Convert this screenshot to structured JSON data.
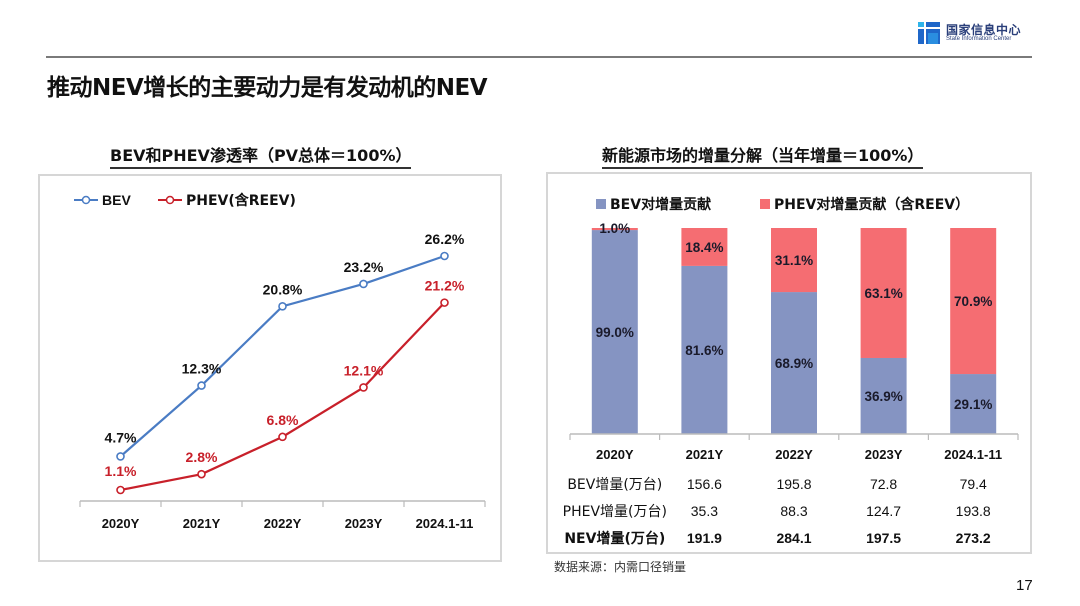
{
  "header": {
    "logo": {
      "name_cn": "国家信息中心",
      "name_en": "State Information Center"
    },
    "title": "推动NEV增长的主要动力是有发动机的NEV"
  },
  "footer": {
    "source": "数据来源：内需口径销量",
    "page_number": "17"
  },
  "colors": {
    "bev_line": "#4a7cc4",
    "phev_line": "#c8202a",
    "bev_bar": "#8594c2",
    "phev_bar": "#f56d72",
    "phev_label": "#c8202a",
    "frame": "#d6d6d6"
  },
  "chart_data": [
    {
      "type": "line",
      "title": "BEV和PHEV渗透率（PV总体＝100%）",
      "xlabel": "",
      "ylabel": "",
      "categories": [
        "2020Y",
        "2021Y",
        "2022Y",
        "2023Y",
        "2024.1-11"
      ],
      "ylim": [
        0,
        30
      ],
      "grid": false,
      "legend": "top-left",
      "series": [
        {
          "name": "BEV",
          "values": [
            4.7,
            12.3,
            20.8,
            23.2,
            26.2
          ],
          "labels": [
            "4.7%",
            "12.3%",
            "20.8%",
            "23.2%",
            "26.2%"
          ]
        },
        {
          "name": "PHEV(含REEV)",
          "values": [
            1.1,
            2.8,
            6.8,
            12.1,
            21.2
          ],
          "labels": [
            "1.1%",
            "2.8%",
            "6.8%",
            "12.1%",
            "21.2%"
          ]
        }
      ]
    },
    {
      "type": "bar",
      "stacked": true,
      "title": "新能源市场的增量分解（当年增量＝100%）",
      "xlabel": "",
      "ylabel": "",
      "categories": [
        "2020Y",
        "2021Y",
        "2022Y",
        "2023Y",
        "2024.1-11"
      ],
      "ylim": [
        0,
        100
      ],
      "legend": "top",
      "series": [
        {
          "name": "BEV对增量贡献",
          "values": [
            99.0,
            81.6,
            68.9,
            36.9,
            29.1
          ],
          "labels": [
            "99.0%",
            "81.6%",
            "68.9%",
            "36.9%",
            "29.1%"
          ]
        },
        {
          "name": "PHEV对增量贡献（含REEV）",
          "values": [
            1.0,
            18.4,
            31.1,
            63.1,
            70.9
          ],
          "labels": [
            "1.0%",
            "18.4%",
            "31.1%",
            "63.1%",
            "70.9%"
          ]
        }
      ],
      "table": {
        "rows": [
          {
            "label": "BEV增量(万台)",
            "bold": false,
            "values": [
              "156.6",
              "195.8",
              "72.8",
              "79.4"
            ]
          },
          {
            "label": "PHEV增量(万台)",
            "bold": false,
            "values": [
              "35.3",
              "88.3",
              "124.7",
              "193.8"
            ]
          },
          {
            "label": "NEV增量(万台)",
            "bold": true,
            "values": [
              "191.9",
              "284.1",
              "197.5",
              "273.2"
            ]
          }
        ]
      }
    }
  ]
}
